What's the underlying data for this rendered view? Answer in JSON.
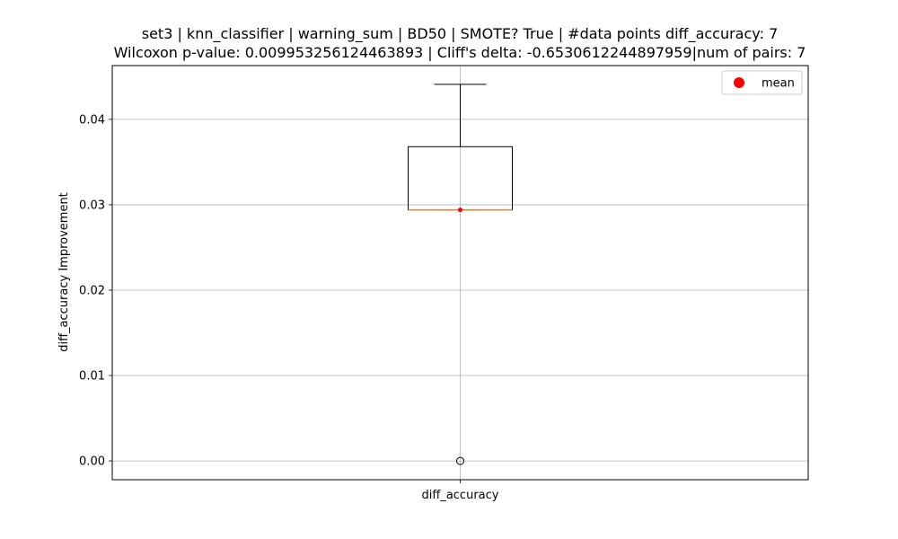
{
  "chart_data": {
    "type": "box",
    "title_line1": "set3 | knn_classifier | warning_sum | BD50 | SMOTE? True | #data points diff_accuracy: 7",
    "title_line2": "Wilcoxon p-value: 0.009953256124463893 | Cliff's delta: -0.6530612244897959|num of pairs: 7",
    "xlabel": "",
    "ylabel": "diff_accuracy Improvement",
    "categories": [
      "diff_accuracy"
    ],
    "ylim": [
      -0.0022,
      0.0463
    ],
    "yticks": [
      0.0,
      0.01,
      0.02,
      0.03,
      0.04
    ],
    "ytick_labels": [
      "0.00",
      "0.01",
      "0.02",
      "0.03",
      "0.04"
    ],
    "grid": true,
    "legend": {
      "position": "top-right",
      "entries": [
        {
          "label": "mean",
          "color": "#ff0000"
        }
      ]
    },
    "box": {
      "whisker_low": 0.0294,
      "q1": 0.0294,
      "median": 0.0294,
      "q3": 0.0368,
      "whisker_high": 0.0441,
      "mean": 0.0294,
      "outliers": [
        0.0
      ]
    },
    "colors": {
      "box": "#000000",
      "median": "#ff7f0e",
      "mean": "#ff0000",
      "grid": "#b0b0b0"
    }
  }
}
